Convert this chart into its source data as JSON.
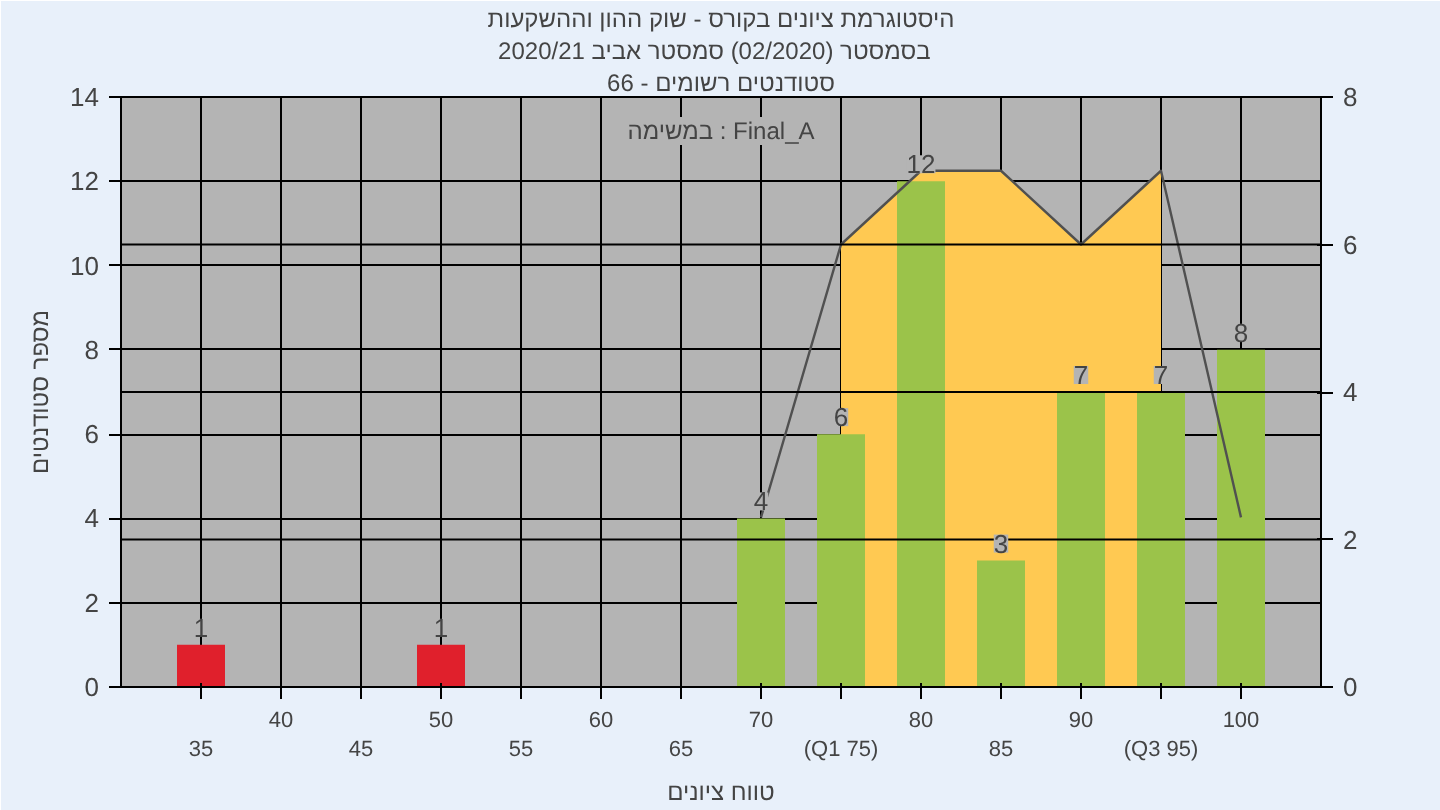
{
  "chart_data": {
    "type": "bar",
    "title": "היסטוגרמת ציונים בקורס - שוק ההון וההשקעות",
    "subtitle": "בסמסטר  (02/2020)  סמסטר אביב 2020/21",
    "xlabel": "טווח ציונים",
    "ylabel": "מספר סטודנטים",
    "annotations": [
      "סטודנטים רשומים - 66",
      "במשימה : Final_A"
    ],
    "categories": [
      "35",
      "40",
      "45",
      "50",
      "55",
      "60",
      "65",
      "70",
      "(Q1 75)",
      "80",
      "85",
      "90",
      "(Q3 95)",
      "100"
    ],
    "series": [
      {
        "type": "area",
        "axis": "y2",
        "color": "#ffc952",
        "values": [
          null,
          null,
          null,
          null,
          null,
          null,
          null,
          null,
          6,
          7,
          7,
          6,
          7,
          null
        ]
      },
      {
        "colors": [
          "#e0202c",
          "#9bc34a",
          "#9bc34a",
          "#e0202c",
          "#9bc34a",
          "#9bc34a",
          "#9bc34a",
          "#9bc34a",
          "#9bc34a",
          "#9bc34a",
          "#9bc34a",
          "#9bc34a",
          "#9bc34a",
          "#9bc34a"
        ],
        "values": [
          1,
          0,
          0,
          1,
          0,
          0,
          0,
          4,
          6,
          12,
          3,
          7,
          7,
          8
        ],
        "value_labels": [
          "1",
          null,
          null,
          "1",
          null,
          null,
          null,
          "4",
          "6",
          "12",
          "3",
          "7",
          "7",
          "8"
        ]
      },
      {
        "type": "line",
        "axis": "y2",
        "color": "#505050",
        "values": [
          null,
          null,
          null,
          null,
          null,
          null,
          null,
          2.3,
          6,
          7,
          7,
          6,
          7,
          2.3
        ]
      }
    ],
    "ylim": [
      0,
      14
    ],
    "yticks": [
      0,
      2,
      4,
      6,
      8,
      10,
      12,
      14
    ],
    "y2lim": [
      0,
      8
    ],
    "y2ticks": [
      0,
      2,
      4,
      6,
      8
    ],
    "grid": true
  }
}
